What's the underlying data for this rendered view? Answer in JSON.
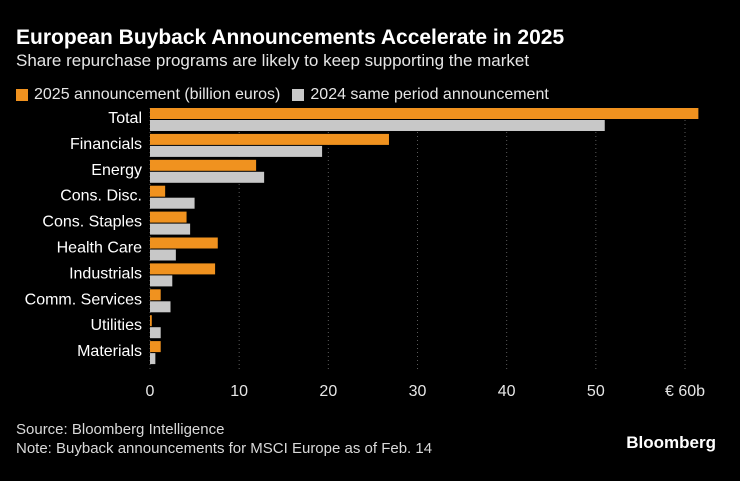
{
  "header": {
    "title": "European Buyback Announcements Accelerate in 2025",
    "subtitle": "Share repurchase programs are likely to keep supporting the market"
  },
  "legend": {
    "items": [
      {
        "label": "2025 announcement (billion euros)",
        "color": "#f0921f"
      },
      {
        "label": "2024 same period announcement",
        "color": "#c8c8c8"
      }
    ]
  },
  "footer": {
    "source": "Source: Bloomberg Intelligence",
    "note": "Note: Buyback announcements for MSCI Europe as of Feb. 14",
    "brand": "Bloomberg"
  },
  "chart_data": {
    "type": "bar",
    "orientation": "horizontal",
    "categories": [
      "Total",
      "Financials",
      "Energy",
      "Cons. Disc.",
      "Cons. Staples",
      "Health Care",
      "Industrials",
      "Comm. Services",
      "Utilities",
      "Materials"
    ],
    "series": [
      {
        "name": "2025 announcement (billion euros)",
        "color": "#f0921f",
        "values": [
          61.5,
          26.8,
          11.9,
          1.7,
          4.1,
          7.6,
          7.3,
          1.2,
          0.2,
          1.2
        ]
      },
      {
        "name": "2024 same period announcement",
        "color": "#c8c8c8",
        "values": [
          51.0,
          19.3,
          12.8,
          5.0,
          4.5,
          2.9,
          2.5,
          2.3,
          1.2,
          0.6
        ]
      }
    ],
    "xlim": [
      0,
      60
    ],
    "xticks": [
      "0",
      "10",
      "20",
      "30",
      "40",
      "50",
      "€ 60b"
    ],
    "tick_values": [
      0,
      10,
      20,
      30,
      40,
      50,
      60
    ],
    "grid": true,
    "legend_position": "top-left"
  }
}
